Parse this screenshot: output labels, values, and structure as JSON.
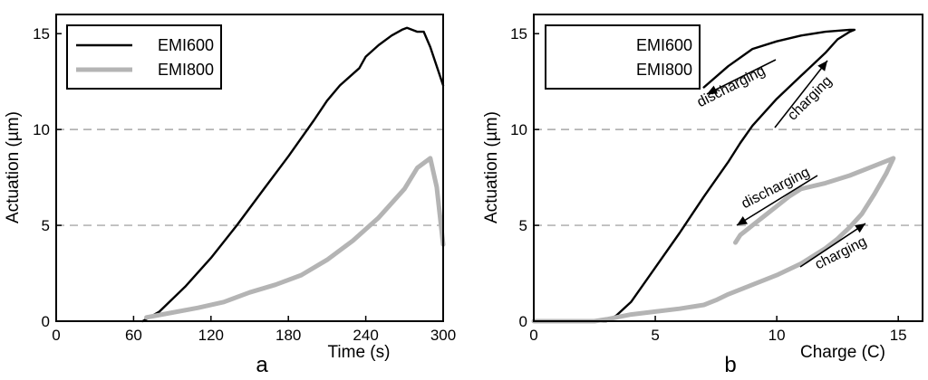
{
  "chart_data": [
    {
      "type": "line",
      "panel_label": "a",
      "xlabel": "Time (s)",
      "ylabel": "Actuation (µm)",
      "xlim": [
        0,
        300
      ],
      "ylim": [
        0,
        16
      ],
      "xticks": [
        0,
        60,
        120,
        180,
        240,
        300
      ],
      "yticks": [
        0,
        5,
        10,
        15
      ],
      "reference_lines_y": [
        5,
        10
      ],
      "legend_position": "top-left",
      "series": [
        {
          "name": "EMI600",
          "color": "#000000",
          "x": [
            67,
            80,
            100,
            120,
            140,
            160,
            180,
            200,
            210,
            220,
            235,
            240,
            250,
            260,
            268,
            272,
            280,
            285,
            290,
            300
          ],
          "y": [
            0,
            0.5,
            1.8,
            3.3,
            5.0,
            6.8,
            8.6,
            10.5,
            11.5,
            12.3,
            13.2,
            13.8,
            14.4,
            14.9,
            15.2,
            15.3,
            15.1,
            15.1,
            14.3,
            12.3
          ]
        },
        {
          "name": "EMI800",
          "color": "#b4b4b4",
          "x": [
            70,
            90,
            110,
            130,
            150,
            170,
            190,
            210,
            230,
            250,
            270,
            280,
            290,
            295,
            300
          ],
          "y": [
            0.2,
            0.45,
            0.7,
            1.0,
            1.5,
            1.9,
            2.4,
            3.2,
            4.2,
            5.4,
            6.9,
            8.0,
            8.5,
            7.0,
            4.0
          ]
        }
      ]
    },
    {
      "type": "line",
      "panel_label": "b",
      "xlabel": "Charge (C)",
      "ylabel": "Actuation (µm)",
      "xlim": [
        0,
        16
      ],
      "ylim": [
        0,
        16
      ],
      "xticks": [
        0,
        5,
        10,
        15
      ],
      "yticks": [
        0,
        5,
        10,
        15
      ],
      "reference_lines_y": [
        5,
        10
      ],
      "legend_position": "top-left",
      "annotations": [
        {
          "text": "discharging",
          "curve": "EMI600"
        },
        {
          "text": "charging",
          "curve": "EMI600"
        },
        {
          "text": "discharging",
          "curve": "EMI800"
        },
        {
          "text": "charging",
          "curve": "EMI800"
        }
      ],
      "series": [
        {
          "name": "EMI600",
          "color": "#000000",
          "x": [
            0,
            3.0,
            3.4,
            4.0,
            5.0,
            6.0,
            7.0,
            8.0,
            8.5,
            9.0,
            10.0,
            11.0,
            12.0,
            12.5,
            13.0,
            13.2,
            13.0,
            12.0,
            11.0,
            10.0,
            9.0,
            8.0,
            7.0
          ],
          "y": [
            0,
            0,
            0.3,
            1.0,
            2.8,
            4.6,
            6.5,
            8.3,
            9.3,
            10.2,
            11.6,
            12.8,
            14.0,
            14.7,
            15.1,
            15.2,
            15.2,
            15.1,
            14.9,
            14.6,
            14.2,
            13.3,
            12.2
          ]
        },
        {
          "name": "EMI800",
          "color": "#b4b4b4",
          "x": [
            0,
            2.5,
            3.0,
            4.0,
            5.0,
            6.0,
            7.0,
            7.5,
            8.0,
            9.0,
            10.0,
            11.0,
            12.0,
            12.5,
            13.0,
            13.5,
            14.0,
            14.5,
            14.8,
            14.0,
            13.0,
            12.0,
            11.0,
            10.5,
            10.0,
            9.5,
            9.0,
            8.5,
            8.3
          ],
          "y": [
            0,
            0,
            0.1,
            0.35,
            0.5,
            0.65,
            0.85,
            1.1,
            1.4,
            1.9,
            2.4,
            3.0,
            3.8,
            4.3,
            4.9,
            5.6,
            6.6,
            7.7,
            8.5,
            8.1,
            7.6,
            7.2,
            6.9,
            6.5,
            6.0,
            5.5,
            5.0,
            4.5,
            4.1
          ]
        }
      ]
    }
  ]
}
